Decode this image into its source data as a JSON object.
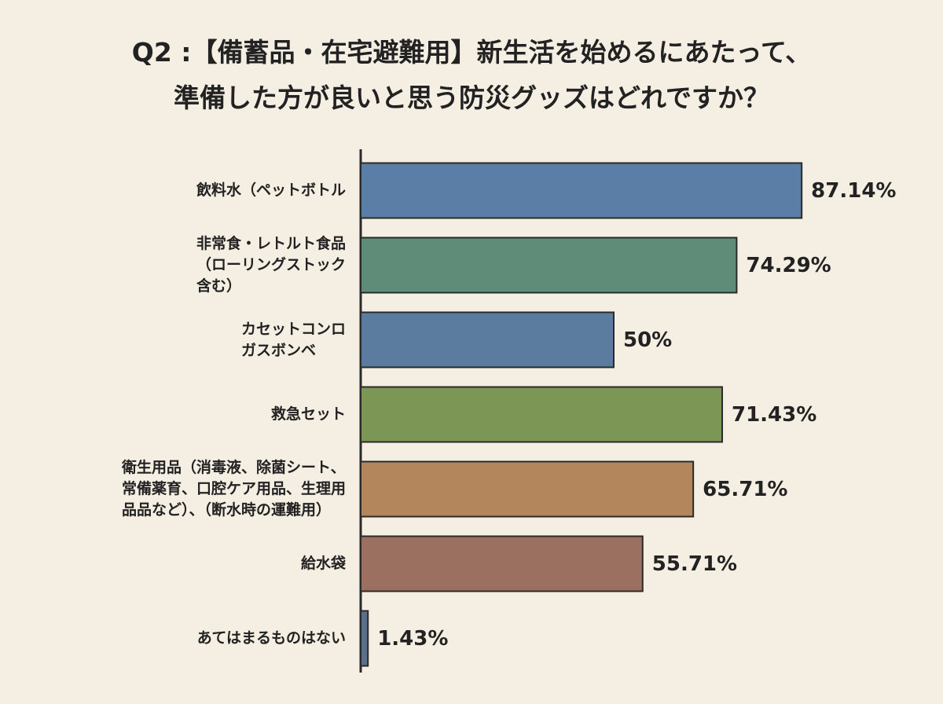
{
  "chart_data": {
    "type": "bar",
    "orientation": "horizontal",
    "title": "Q2 :【備蓄品・在宅避難用】新生活を始めるにあたって、\n準備した方が良いと思う防災グッズはどれですか？",
    "categories": [
      "飲料水（ペットボトル",
      "非常食・レトルト食品\n（ローリングストック\n含む）",
      "カセットコンロ\nガスボンベ",
      "救急セット",
      "衛生用品（消毒液、除菌シート、\n常備薬育、口腔ケア用品、生理用\n品品など）、（断水時の運難用）",
      "給水袋",
      "あてはまるものはない"
    ],
    "values": [
      87.14,
      74.29,
      50,
      71.43,
      65.71,
      55.71,
      1.43
    ],
    "value_labels": [
      "87.14%",
      "74.29%",
      "50%",
      "71.43%",
      "65.71%",
      "55.71%",
      "1.43%"
    ],
    "colors": [
      "#5b7ea6",
      "#5e8c78",
      "#5b7c9e",
      "#7c9656",
      "#b3865b",
      "#9c7060",
      "#5a6f8c"
    ],
    "xlim": [
      0,
      100
    ]
  }
}
